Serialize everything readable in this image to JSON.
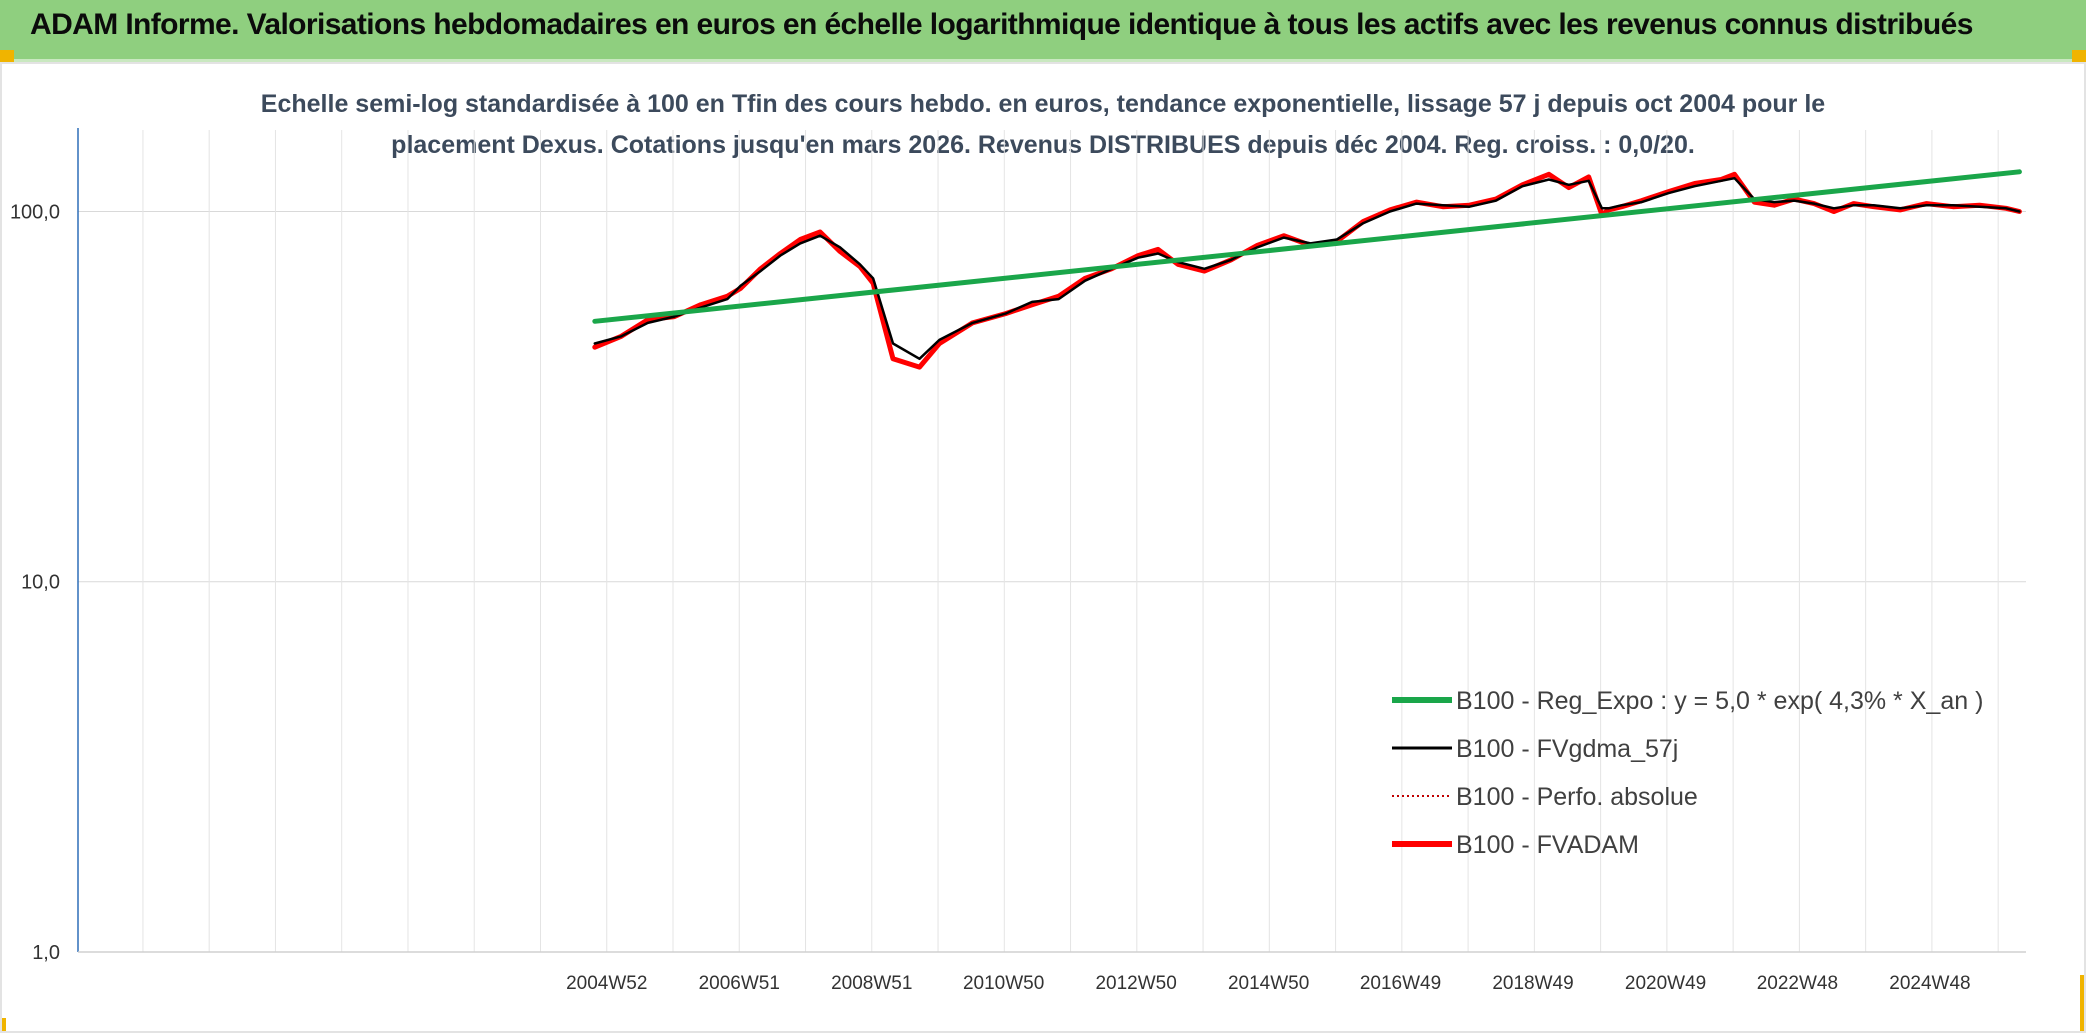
{
  "header": {
    "title": "ADAM Informe. Valorisations hebdomadaires en euros en échelle logarithmique identique à tous les actifs avec les revenus connus distribués"
  },
  "colors": {
    "banner": "#8fcf7f",
    "corner_accent": "#f0b400",
    "regression": "#1aa64a",
    "smoothed": "#000000",
    "absolute": "#c00000",
    "fvadam": "#ff0000"
  },
  "chart_data": {
    "type": "line",
    "subtitle": [
      "Echelle semi-log standardisée à 100 en Tfin des cours hebdo. en euros, tendance exponentielle, lissage 57 j depuis oct 2004 pour le",
      "placement Dexus. Cotations jusqu'en mars 2026. Revenus DISTRIBUES depuis déc 2004. Reg. croiss. : 0,0/20."
    ],
    "y_scale": "log",
    "ylim": [
      1,
      200
    ],
    "yticks": [
      {
        "value": 1,
        "label": "1,0"
      },
      {
        "value": 10,
        "label": "10,0"
      },
      {
        "value": 100,
        "label": "100,0"
      }
    ],
    "xlim": [
      1997.0,
      2026.4
    ],
    "xticks": [
      {
        "value": 2004.98,
        "label": "2004W52"
      },
      {
        "value": 2006.98,
        "label": "2006W51"
      },
      {
        "value": 2008.98,
        "label": "2008W51"
      },
      {
        "value": 2010.97,
        "label": "2010W50"
      },
      {
        "value": 2012.97,
        "label": "2012W50"
      },
      {
        "value": 2014.97,
        "label": "2014W50"
      },
      {
        "value": 2016.96,
        "label": "2016W49"
      },
      {
        "value": 2018.96,
        "label": "2018W49"
      },
      {
        "value": 2020.96,
        "label": "2020W49"
      },
      {
        "value": 2022.95,
        "label": "2022W48"
      },
      {
        "value": 2024.95,
        "label": "2024W48"
      }
    ],
    "grid": true,
    "legend_position": "bottom-right",
    "series": [
      {
        "name": "B100 - Reg_Expo : y = 5,0 * exp( 4,3% *  X_an )",
        "color": "#1aa64a",
        "style": "thick",
        "x": [
          2004.8,
          2026.3
        ],
        "values": [
          50.5,
          128
        ]
      },
      {
        "name": "B100 - FVgdma_57j",
        "color": "#000000",
        "style": "thin",
        "x": [
          2004.8,
          2005.2,
          2005.6,
          2006.0,
          2006.4,
          2006.8,
          2007.0,
          2007.3,
          2007.6,
          2007.9,
          2008.2,
          2008.5,
          2008.8,
          2009.0,
          2009.3,
          2009.7,
          2010.0,
          2010.5,
          2011.0,
          2011.4,
          2011.8,
          2012.2,
          2012.6,
          2013.0,
          2013.3,
          2013.6,
          2014.0,
          2014.4,
          2014.8,
          2015.2,
          2015.6,
          2016.0,
          2016.4,
          2016.8,
          2017.2,
          2017.6,
          2018.0,
          2018.4,
          2018.8,
          2019.2,
          2019.5,
          2019.8,
          2020.0,
          2020.1,
          2020.3,
          2020.6,
          2021.0,
          2021.4,
          2021.8,
          2022.0,
          2022.3,
          2022.6,
          2022.9,
          2023.2,
          2023.5,
          2023.8,
          2024.1,
          2024.5,
          2024.9,
          2025.3,
          2025.7,
          2026.1,
          2026.3
        ],
        "values": [
          44,
          46,
          50,
          52,
          55,
          58,
          63,
          69,
          76,
          82,
          86,
          80,
          72,
          66,
          44,
          40,
          45,
          50,
          53,
          57,
          58,
          65,
          70,
          75,
          77,
          73,
          70,
          74,
          80,
          85,
          82,
          84,
          93,
          100,
          105,
          104,
          103,
          107,
          117,
          122,
          118,
          121,
          102,
          102,
          104,
          106,
          112,
          117,
          121,
          123,
          108,
          106,
          107,
          105,
          102,
          104,
          104,
          102,
          104,
          104,
          103,
          102,
          100
        ]
      },
      {
        "name": "B100 - Perfo. absolue",
        "color": "#c00000",
        "style": "dotted",
        "x": [],
        "values": []
      },
      {
        "name": "B100 - FVADAM",
        "color": "#ff0000",
        "style": "thick",
        "x": [
          2004.8,
          2005.2,
          2005.6,
          2006.0,
          2006.4,
          2006.8,
          2007.0,
          2007.3,
          2007.6,
          2007.9,
          2008.2,
          2008.5,
          2008.8,
          2009.0,
          2009.3,
          2009.7,
          2010.0,
          2010.5,
          2011.0,
          2011.4,
          2011.8,
          2012.2,
          2012.6,
          2013.0,
          2013.3,
          2013.6,
          2014.0,
          2014.4,
          2014.8,
          2015.2,
          2015.6,
          2016.0,
          2016.4,
          2016.8,
          2017.2,
          2017.6,
          2018.0,
          2018.4,
          2018.8,
          2019.2,
          2019.5,
          2019.8,
          2020.0,
          2020.1,
          2020.3,
          2020.6,
          2021.0,
          2021.4,
          2021.8,
          2022.0,
          2022.3,
          2022.6,
          2022.9,
          2023.2,
          2023.5,
          2023.8,
          2024.1,
          2024.5,
          2024.9,
          2025.3,
          2025.7,
          2026.1,
          2026.3
        ],
        "values": [
          43,
          46,
          51,
          52,
          56,
          59,
          62,
          70,
          77,
          84,
          88,
          78,
          71,
          64,
          40,
          38,
          44,
          50,
          53,
          56,
          59,
          66,
          70,
          76,
          79,
          72,
          69,
          74,
          81,
          86,
          81,
          83,
          94,
          101,
          106,
          103,
          104,
          108,
          118,
          126,
          116,
          124,
          98,
          101,
          103,
          107,
          113,
          119,
          122,
          126,
          106,
          104,
          108,
          105,
          100,
          105,
          103,
          101,
          105,
          103,
          104,
          102,
          100
        ]
      }
    ]
  }
}
